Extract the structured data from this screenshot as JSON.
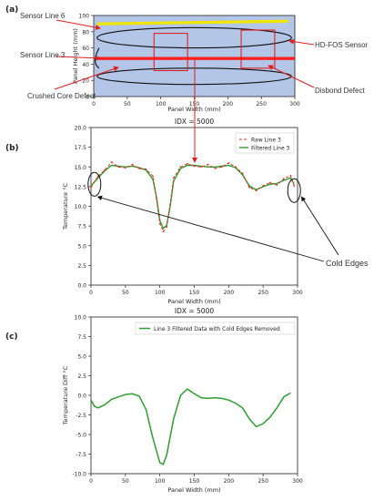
{
  "chart_data": [
    {
      "panel": "(a)",
      "type": "diagram",
      "xlabel": "Panel Width (mm)",
      "ylabel": "Panel Height (mm)",
      "xlim": [
        0,
        300
      ],
      "ylim": [
        0,
        100
      ],
      "xticks": [
        "0",
        "50",
        "100",
        "150",
        "200",
        "250",
        "300"
      ],
      "yticks": [
        "0",
        "20",
        "40",
        "60",
        "80",
        "100"
      ],
      "background_color": "#b4c6e7",
      "sensor_line_6_y": 93,
      "sensor_line_3_y": 47,
      "sensor_loop_y": [
        85,
        60,
        35,
        15
      ],
      "crushed_core_box": {
        "x": [
          90,
          140
        ],
        "y": [
          32,
          78
        ]
      },
      "disbond_box": {
        "x": [
          220,
          270
        ],
        "y": [
          35,
          82
        ]
      },
      "callouts": [
        "Sensor Line 6",
        "Sensor Line 3",
        "Crushed Core Defect",
        "HD-FOS Sensor",
        "Disbond Defect"
      ],
      "colors": {
        "line6": "#f0e600",
        "line3": "#ff2020",
        "box": "#e02020",
        "loop": "#111111"
      }
    },
    {
      "panel": "(b)",
      "type": "line",
      "title": "IDX = 5000",
      "xlabel": "Panel Width (mm)",
      "ylabel": "Temperature °C",
      "xlim": [
        0,
        300
      ],
      "ylim": [
        0.0,
        20.0
      ],
      "xticks": [
        "0",
        "50",
        "100",
        "150",
        "200",
        "250",
        "300"
      ],
      "yticks": [
        "0.0",
        "2.5",
        "5.0",
        "7.5",
        "10.0",
        "12.5",
        "15.0",
        "17.5",
        "20.0"
      ],
      "legend_position": "top-right",
      "series": [
        {
          "name": "Raw Line 3",
          "style": "dashed",
          "color": "#e0302a",
          "x": [
            0,
            10,
            20,
            30,
            40,
            50,
            60,
            70,
            80,
            90,
            95,
            100,
            105,
            110,
            115,
            120,
            130,
            140,
            150,
            160,
            170,
            180,
            190,
            200,
            210,
            220,
            230,
            240,
            250,
            260,
            270,
            280,
            290,
            295
          ],
          "y": [
            12.4,
            13.8,
            14.6,
            15.6,
            15.0,
            14.9,
            15.3,
            14.8,
            14.7,
            13.8,
            11.0,
            7.8,
            6.8,
            7.4,
            10.2,
            13.6,
            15.0,
            15.4,
            15.1,
            15.0,
            15.3,
            14.8,
            15.0,
            15.5,
            15.0,
            14.2,
            12.4,
            12.0,
            12.6,
            13.0,
            12.7,
            13.5,
            13.9,
            12.6
          ]
        },
        {
          "name": "Filtered Line 3",
          "style": "solid",
          "color": "#2e9e2e",
          "x": [
            0,
            10,
            20,
            30,
            40,
            50,
            60,
            70,
            80,
            90,
            95,
            100,
            105,
            110,
            115,
            120,
            130,
            140,
            150,
            160,
            170,
            180,
            190,
            200,
            210,
            220,
            230,
            240,
            250,
            260,
            270,
            280,
            290,
            295
          ],
          "y": [
            12.6,
            13.6,
            14.5,
            15.2,
            15.1,
            15.0,
            15.1,
            14.9,
            14.6,
            13.4,
            11.2,
            8.2,
            7.2,
            7.6,
            10.0,
            13.2,
            14.8,
            15.2,
            15.2,
            15.1,
            15.0,
            15.0,
            15.1,
            15.2,
            14.9,
            14.0,
            12.6,
            12.1,
            12.5,
            12.8,
            12.9,
            13.3,
            13.6,
            12.8
          ]
        }
      ],
      "annotation": "Cold Edges"
    },
    {
      "panel": "(c)",
      "type": "line",
      "title": "IDX = 5000",
      "xlabel": "Panel Width (mm)",
      "ylabel": "Temperature Diff °C",
      "xlim": [
        0,
        300
      ],
      "ylim": [
        -10.0,
        10.0
      ],
      "xticks": [
        "0",
        "50",
        "100",
        "150",
        "200",
        "250",
        "300"
      ],
      "yticks": [
        "-10.0",
        "-7.5",
        "-5.0",
        "-2.5",
        "0.0",
        "2.5",
        "5.0",
        "7.5",
        "10.0"
      ],
      "legend_position": "top-right",
      "series": [
        {
          "name": "Line 3 Filtered Data with Cold Edges Removed",
          "color": "#2e9e2e",
          "x": [
            0,
            5,
            10,
            20,
            30,
            40,
            50,
            60,
            70,
            80,
            90,
            100,
            105,
            110,
            120,
            130,
            140,
            150,
            160,
            170,
            180,
            190,
            200,
            210,
            220,
            230,
            240,
            250,
            260,
            270,
            280,
            290
          ],
          "y": [
            -0.6,
            -1.4,
            -1.6,
            -1.2,
            -0.5,
            -0.2,
            0.1,
            0.2,
            -0.1,
            -1.8,
            -5.5,
            -8.6,
            -8.8,
            -7.6,
            -3.0,
            0.0,
            0.8,
            0.2,
            -0.3,
            -0.4,
            -0.3,
            -0.4,
            -0.6,
            -1.0,
            -1.6,
            -3.0,
            -4.0,
            -3.6,
            -2.8,
            -1.6,
            -0.2,
            0.3
          ]
        }
      ]
    }
  ],
  "panel_labels": [
    "(a)",
    "(b)",
    "(c)"
  ]
}
